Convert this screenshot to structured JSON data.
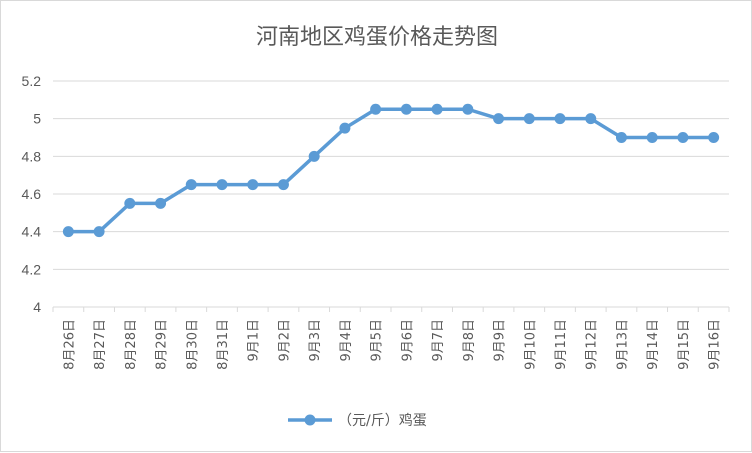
{
  "chart_data": {
    "type": "line",
    "title": "河南地区鸡蛋价格走势图",
    "xlabel": "",
    "ylabel": "",
    "ylim": [
      4,
      5.2
    ],
    "yticks": [
      "4",
      "4.2",
      "4.4",
      "4.6",
      "4.8",
      "5",
      "5.2"
    ],
    "grid": true,
    "legend_position": "bottom",
    "categories": [
      "8月26日",
      "8月27日",
      "8月28日",
      "8月29日",
      "8月30日",
      "8月31日",
      "9月1日",
      "9月2日",
      "9月3日",
      "9月4日",
      "9月5日",
      "9月6日",
      "9月7日",
      "9月8日",
      "9月9日",
      "9月10日",
      "9月11日",
      "9月12日",
      "9月13日",
      "9月14日",
      "9月15日",
      "9月16日"
    ],
    "series": [
      {
        "name": "（元/斤）鸡蛋",
        "color": "#5b9bd5",
        "values": [
          4.4,
          4.4,
          4.55,
          4.55,
          4.65,
          4.65,
          4.65,
          4.65,
          4.8,
          4.95,
          5.05,
          5.05,
          5.05,
          5.05,
          5.0,
          5.0,
          5.0,
          5.0,
          4.9,
          4.9,
          4.9,
          4.9
        ]
      }
    ]
  }
}
